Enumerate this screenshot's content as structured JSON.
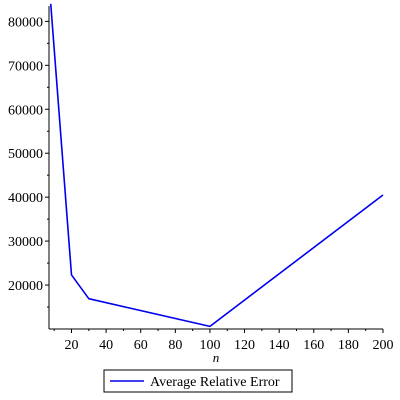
{
  "chart_data": {
    "type": "line",
    "xlabel": "n",
    "ylabel": "",
    "xlim": [
      7,
      200
    ],
    "ylim": [
      10000,
      83500
    ],
    "x_ticks": [
      20,
      40,
      60,
      80,
      100,
      120,
      140,
      160,
      180,
      200
    ],
    "y_ticks": [
      20000,
      30000,
      40000,
      50000,
      60000,
      70000,
      80000
    ],
    "grid": false,
    "legend_position": "bottom-center",
    "series": [
      {
        "name": "Average Relative Error",
        "color": "#0000ee",
        "x": [
          8,
          20,
          30,
          100,
          200
        ],
        "y": [
          84000,
          22300,
          16900,
          10600,
          40500
        ]
      }
    ]
  }
}
